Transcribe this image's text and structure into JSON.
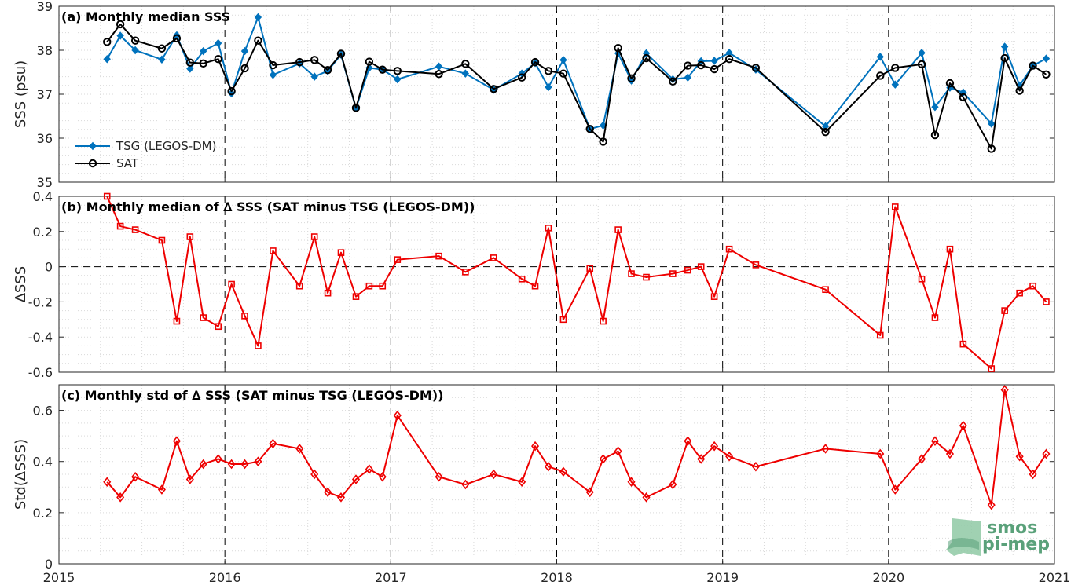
{
  "logo": {
    "line1": "smos",
    "line2": "pi-mep"
  },
  "colors": {
    "tsg": "#0072BD",
    "sat": "#000000",
    "delta": "#EE0000"
  },
  "chart_data": [
    {
      "type": "line",
      "title": "(a) Monthly median SSS",
      "xlabel": "",
      "ylabel": "SSS (psu)",
      "xlim": [
        2015,
        2021
      ],
      "ylim": [
        35,
        39
      ],
      "xticks": [
        "2015",
        "2016",
        "2017",
        "2018",
        "2019",
        "2020",
        "2021"
      ],
      "yticks": [
        "35",
        "36",
        "37",
        "38",
        "39"
      ],
      "grid": true,
      "legend": "bottom-left",
      "series": [
        {
          "name": "TSG (LEGOS-DM)",
          "marker": "diamond",
          "x": [
            2015.29,
            2015.37,
            2015.46,
            2015.62,
            2015.71,
            2015.79,
            2015.87,
            2015.96,
            2016.04,
            2016.12,
            2016.2,
            2016.29,
            2016.45,
            2016.54,
            2016.62,
            2016.7,
            2016.79,
            2016.87,
            2016.95,
            2017.04,
            2017.29,
            2017.45,
            2017.62,
            2017.79,
            2017.87,
            2017.95,
            2018.04,
            2018.2,
            2018.28,
            2018.37,
            2018.45,
            2018.54,
            2018.7,
            2018.79,
            2018.87,
            2018.95,
            2019.04,
            2019.2,
            2019.62,
            2019.95,
            2020.04,
            2020.2,
            2020.28,
            2020.37,
            2020.45,
            2020.62,
            2020.7,
            2020.79,
            2020.87,
            2020.95
          ],
          "y": [
            37.8,
            38.33,
            38.0,
            37.79,
            38.34,
            37.58,
            37.98,
            38.16,
            37.02,
            37.98,
            38.75,
            37.44,
            37.7,
            37.4,
            37.53,
            37.9,
            36.68,
            37.6,
            37.56,
            37.34,
            37.63,
            37.47,
            37.1,
            37.47,
            37.71,
            37.16,
            37.78,
            36.21,
            36.29,
            37.93,
            37.31,
            37.93,
            37.34,
            37.38,
            37.75,
            37.76,
            37.94,
            37.56,
            36.27,
            37.85,
            37.22,
            37.94,
            36.71,
            37.15,
            37.04,
            36.33,
            38.08,
            37.2,
            37.65,
            37.81
          ]
        },
        {
          "name": "SAT",
          "marker": "circle",
          "x": [
            2015.29,
            2015.37,
            2015.46,
            2015.62,
            2015.71,
            2015.79,
            2015.87,
            2015.96,
            2016.04,
            2016.12,
            2016.2,
            2016.29,
            2016.45,
            2016.54,
            2016.62,
            2016.7,
            2016.79,
            2016.87,
            2016.95,
            2017.04,
            2017.29,
            2017.45,
            2017.62,
            2017.79,
            2017.87,
            2017.95,
            2018.04,
            2018.2,
            2018.28,
            2018.37,
            2018.45,
            2018.54,
            2018.7,
            2018.79,
            2018.87,
            2018.95,
            2019.04,
            2019.2,
            2019.62,
            2019.95,
            2020.04,
            2020.2,
            2020.28,
            2020.37,
            2020.45,
            2020.62,
            2020.7,
            2020.79,
            2020.87,
            2020.95
          ],
          "y": [
            38.19,
            38.59,
            38.22,
            38.04,
            38.27,
            37.72,
            37.7,
            37.8,
            37.07,
            37.59,
            38.22,
            37.66,
            37.73,
            37.78,
            37.55,
            37.92,
            36.69,
            37.74,
            37.56,
            37.53,
            37.46,
            37.69,
            37.12,
            37.38,
            37.73,
            37.53,
            37.47,
            36.21,
            35.92,
            38.05,
            37.36,
            37.82,
            37.29,
            37.65,
            37.66,
            37.57,
            37.8,
            37.6,
            36.14,
            37.42,
            37.6,
            37.68,
            36.07,
            37.25,
            36.93,
            35.76,
            37.82,
            37.08,
            37.65,
            37.45
          ]
        }
      ]
    },
    {
      "type": "line",
      "title": "(b) Monthly median of ∆ SSS (SAT minus TSG (LEGOS-DM))",
      "xlabel": "",
      "ylabel": "∆SSS",
      "xlim": [
        2015,
        2021
      ],
      "ylim": [
        -0.6,
        0.4
      ],
      "xticks": [
        "2015",
        "2016",
        "2017",
        "2018",
        "2019",
        "2020",
        "2021"
      ],
      "yticks": [
        "-0.6",
        "-0.4",
        "-0.2",
        "0",
        "0.2",
        "0.4"
      ],
      "grid": true,
      "zero_line": true,
      "series": [
        {
          "marker": "square",
          "x": [
            2015.29,
            2015.37,
            2015.46,
            2015.62,
            2015.71,
            2015.79,
            2015.87,
            2015.96,
            2016.04,
            2016.12,
            2016.2,
            2016.29,
            2016.45,
            2016.54,
            2016.62,
            2016.7,
            2016.79,
            2016.87,
            2016.95,
            2017.04,
            2017.29,
            2017.45,
            2017.62,
            2017.79,
            2017.87,
            2017.95,
            2018.04,
            2018.2,
            2018.28,
            2018.37,
            2018.45,
            2018.54,
            2018.7,
            2018.79,
            2018.87,
            2018.95,
            2019.04,
            2019.2,
            2019.62,
            2019.95,
            2020.04,
            2020.2,
            2020.28,
            2020.37,
            2020.45,
            2020.62,
            2020.7,
            2020.79,
            2020.87,
            2020.95
          ],
          "y": [
            0.4,
            0.23,
            0.21,
            0.15,
            -0.31,
            0.17,
            -0.29,
            -0.34,
            -0.1,
            -0.28,
            -0.45,
            0.09,
            -0.11,
            0.17,
            -0.15,
            0.08,
            -0.17,
            -0.11,
            -0.11,
            0.04,
            0.06,
            -0.03,
            0.05,
            -0.07,
            -0.11,
            0.22,
            -0.3,
            -0.01,
            -0.31,
            0.21,
            -0.04,
            -0.06,
            -0.04,
            -0.02,
            0.0,
            -0.17,
            0.1,
            0.01,
            -0.13,
            -0.39,
            0.34,
            -0.07,
            -0.29,
            0.1,
            -0.44,
            -0.58,
            -0.25,
            -0.15,
            -0.11,
            -0.2
          ]
        }
      ]
    },
    {
      "type": "line",
      "title": "(c) Monthly std of ∆ SSS (SAT minus TSG (LEGOS-DM))",
      "xlabel": "",
      "ylabel": "Std(∆SSS)",
      "xlim": [
        2015,
        2021
      ],
      "ylim": [
        0,
        0.7
      ],
      "xticks": [
        "2015",
        "2016",
        "2017",
        "2018",
        "2019",
        "2020",
        "2021"
      ],
      "yticks": [
        "0",
        "0.2",
        "0.4",
        "0.6"
      ],
      "grid": true,
      "series": [
        {
          "marker": "diamond",
          "x": [
            2015.29,
            2015.37,
            2015.46,
            2015.62,
            2015.71,
            2015.79,
            2015.87,
            2015.96,
            2016.04,
            2016.12,
            2016.2,
            2016.29,
            2016.45,
            2016.54,
            2016.62,
            2016.7,
            2016.79,
            2016.87,
            2016.95,
            2017.04,
            2017.29,
            2017.45,
            2017.62,
            2017.79,
            2017.87,
            2017.95,
            2018.04,
            2018.2,
            2018.28,
            2018.37,
            2018.45,
            2018.54,
            2018.7,
            2018.79,
            2018.87,
            2018.95,
            2019.04,
            2019.2,
            2019.62,
            2019.95,
            2020.04,
            2020.2,
            2020.28,
            2020.37,
            2020.45,
            2020.62,
            2020.7,
            2020.79,
            2020.87,
            2020.95
          ],
          "y": [
            0.32,
            0.26,
            0.34,
            0.29,
            0.48,
            0.33,
            0.39,
            0.41,
            0.39,
            0.39,
            0.4,
            0.47,
            0.45,
            0.35,
            0.28,
            0.26,
            0.33,
            0.37,
            0.34,
            0.58,
            0.34,
            0.31,
            0.35,
            0.32,
            0.46,
            0.38,
            0.36,
            0.28,
            0.41,
            0.44,
            0.32,
            0.26,
            0.31,
            0.48,
            0.41,
            0.46,
            0.42,
            0.38,
            0.45,
            0.43,
            0.29,
            0.41,
            0.48,
            0.43,
            0.54,
            0.23,
            0.68,
            0.42,
            0.35,
            0.43
          ]
        }
      ]
    }
  ]
}
